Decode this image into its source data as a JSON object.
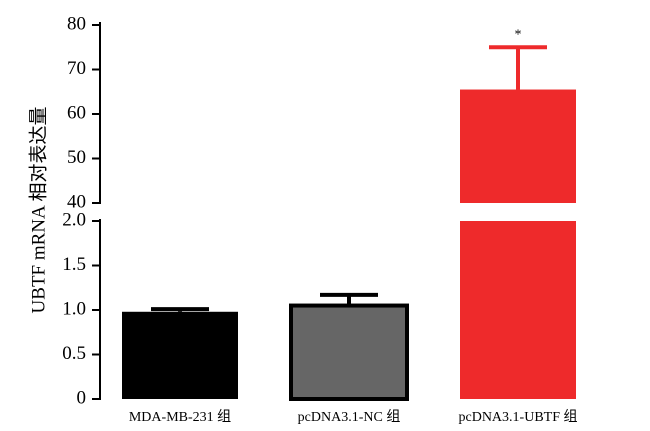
{
  "chart_data": {
    "type": "bar",
    "y_label": "UBTF mRNA 相对表达量",
    "categories": [
      "MDA-MB-231 组",
      "pcDNA3.1-NC 组",
      "pcDNA3.1-UBTF 组"
    ],
    "values": [
      0.98,
      1.05,
      65.5
    ],
    "errors": [
      0.03,
      0.12,
      9.5
    ],
    "colors": [
      "#000000",
      "#666666",
      "#ee2a2b"
    ],
    "annotations": [
      null,
      null,
      "*"
    ],
    "ylim": [
      0,
      2
    ],
    "yticks": [
      0,
      0.5,
      {
        "value": 1,
        "label": "1.0"
      },
      1.5,
      {
        "value": 2,
        "label": "2.0"
      }
    ],
    "y2lim": [
      40,
      80
    ],
    "y2ticks": [
      40,
      50,
      60,
      70,
      80
    ]
  }
}
